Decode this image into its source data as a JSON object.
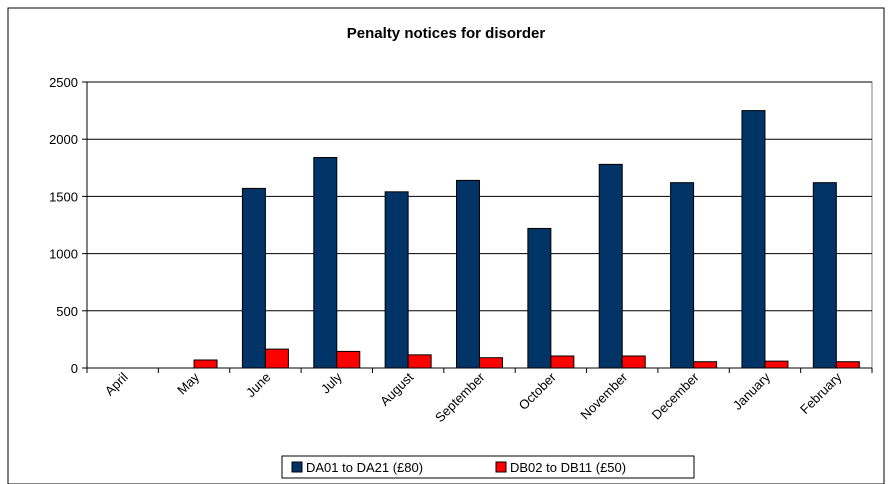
{
  "chart_data": {
    "type": "bar",
    "title": "Penalty notices for disorder",
    "xlabel": "",
    "ylabel": "",
    "categories": [
      "April",
      "May",
      "June",
      "July",
      "August",
      "September",
      "October",
      "November",
      "December",
      "January",
      "February"
    ],
    "series": [
      {
        "name": "DA01 to DA21 (£80)",
        "color": "#003366",
        "values": [
          0,
          0,
          1570,
          1840,
          1540,
          1640,
          1220,
          1780,
          1620,
          2250,
          1620
        ]
      },
      {
        "name": "DB02 to DB11 (£50)",
        "color": "#FF0000",
        "values": [
          0,
          70,
          165,
          145,
          115,
          90,
          105,
          105,
          55,
          60,
          55
        ]
      }
    ],
    "ylim": [
      0,
      2500
    ],
    "yticks": [
      0,
      500,
      1000,
      1500,
      2000,
      2500
    ],
    "ytick_labels": [
      "0",
      "500",
      "1000",
      "1500",
      "2000",
      "2500"
    ],
    "grid": true,
    "legend_position": "bottom"
  }
}
